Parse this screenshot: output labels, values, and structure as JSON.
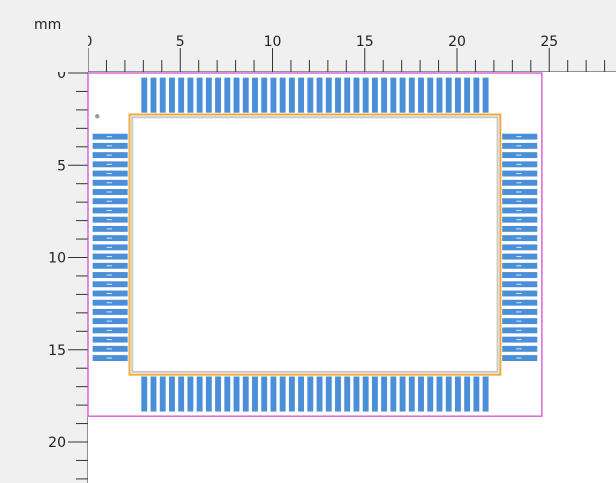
{
  "units_label": "mm",
  "ruler": {
    "x_ticks": [
      "0",
      "5",
      "10",
      "15",
      "20",
      "25"
    ],
    "y_ticks": [
      "0",
      "5",
      "10",
      "15",
      "20"
    ]
  },
  "package": {
    "outline_width_mm": 24.6,
    "outline_height_mm": 18.6,
    "body_width_mm": 20.0,
    "body_height_mm": 14.0,
    "pin_pitch_mm": 0.5,
    "pins_top": 38,
    "pins_bottom": 38,
    "pins_left": 25,
    "pins_right": 25
  },
  "colors": {
    "ruler_bg": "#f0f0f0",
    "ruler_line": "#333333",
    "canvas_bg": "#ffffff",
    "pad_fill": "#4a8fd8",
    "pad_label": "#d6e8ff",
    "body_outline": "#f2a93b",
    "body_inner": "#c9c9c9",
    "courtyard": "#d040d0",
    "pin1_marker": "#999999"
  }
}
